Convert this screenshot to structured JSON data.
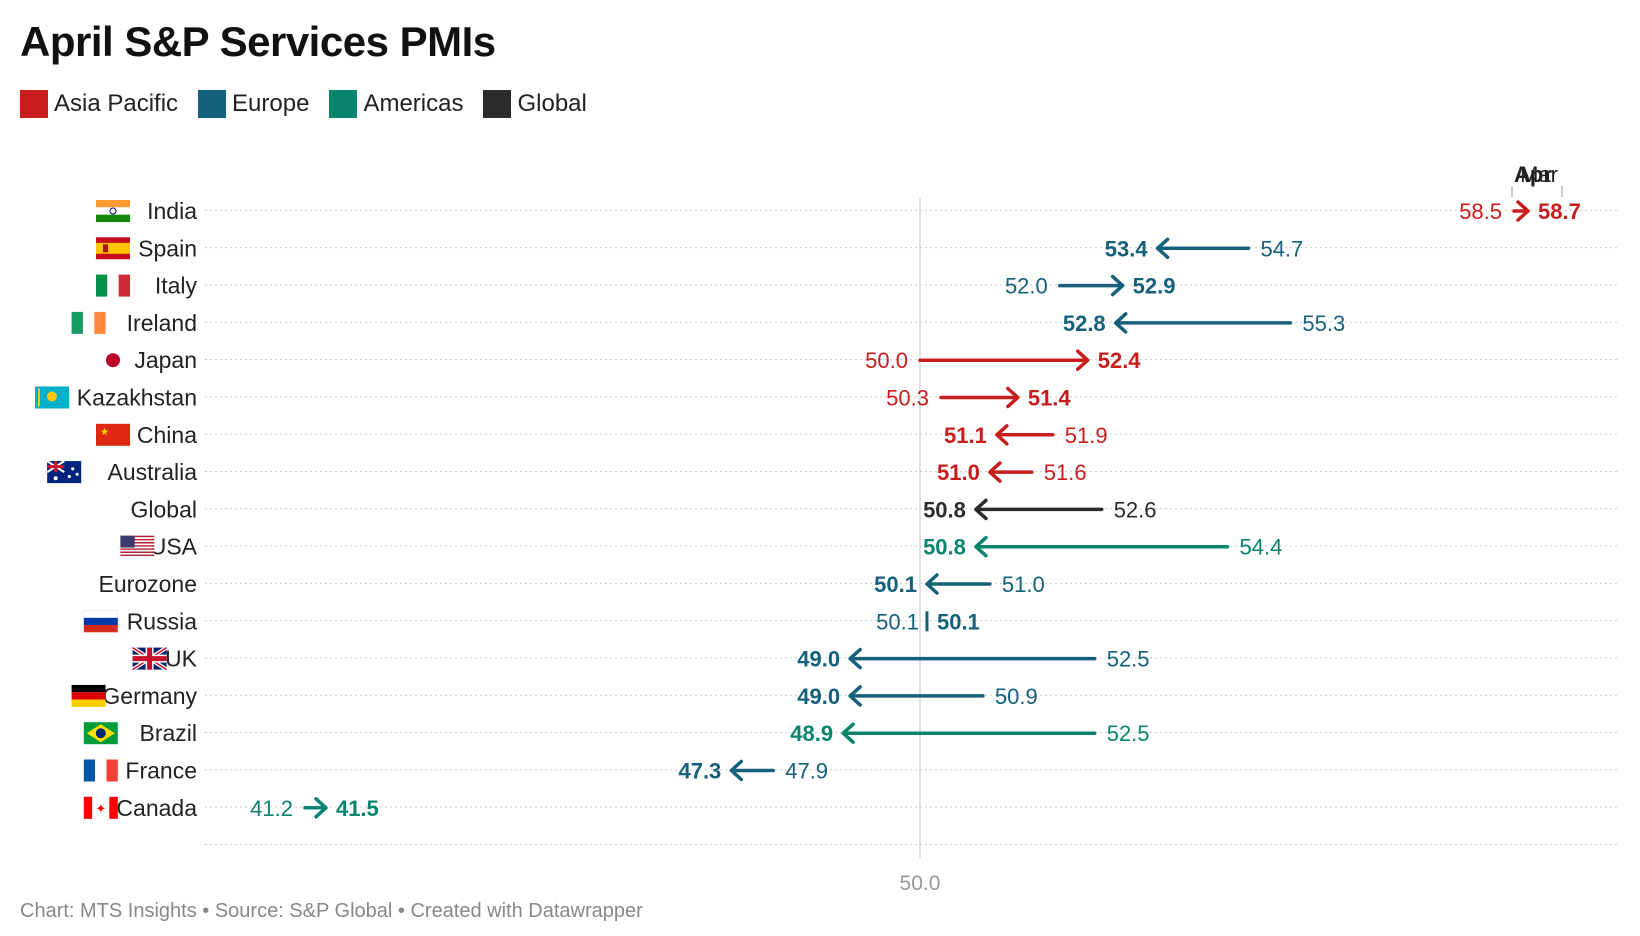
{
  "chart_data": {
    "type": "arrow-dumbbell",
    "title": "April S&P Services PMIs",
    "legend": [
      {
        "name": "Asia Pacific",
        "color": "#c71e1d"
      },
      {
        "name": "Europe",
        "color": "#15607a"
      },
      {
        "name": "Americas",
        "color": "#09856e"
      },
      {
        "name": "Global",
        "color": "#2b2b2b"
      }
    ],
    "key": {
      "from_label": "Mar",
      "to_label": "Apr"
    },
    "reference_value": 50.0,
    "reference_label": "50.0",
    "xlim": [
      41.2,
      58.7
    ],
    "rows": [
      {
        "name": "India",
        "flag": "india-flag",
        "region": "Asia Pacific",
        "mar": 58.5,
        "apr": 58.7,
        "mar_label": "58.5",
        "apr_label": "58.7"
      },
      {
        "name": "Spain",
        "flag": "spain-flag",
        "region": "Europe",
        "mar": 54.7,
        "apr": 53.4,
        "mar_label": "54.7",
        "apr_label": "53.4"
      },
      {
        "name": "Italy",
        "flag": "italy-flag",
        "region": "Europe",
        "mar": 52.0,
        "apr": 52.9,
        "mar_label": "52.0",
        "apr_label": "52.9"
      },
      {
        "name": "Ireland",
        "flag": "ireland-flag",
        "region": "Europe",
        "mar": 55.3,
        "apr": 52.8,
        "mar_label": "55.3",
        "apr_label": "52.8"
      },
      {
        "name": "Japan",
        "flag": "japan-flag",
        "region": "Asia Pacific",
        "mar": 50.0,
        "apr": 52.4,
        "mar_label": "50.0",
        "apr_label": "52.4"
      },
      {
        "name": "Kazakhstan",
        "flag": "kazakhstan-flag",
        "region": "Asia Pacific",
        "mar": 50.3,
        "apr": 51.4,
        "mar_label": "50.3",
        "apr_label": "51.4"
      },
      {
        "name": "China",
        "flag": "china-flag",
        "region": "Asia Pacific",
        "mar": 51.9,
        "apr": 51.1,
        "mar_label": "51.9",
        "apr_label": "51.1"
      },
      {
        "name": "Australia",
        "flag": "australia-flag",
        "region": "Asia Pacific",
        "mar": 51.6,
        "apr": 51.0,
        "mar_label": "51.6",
        "apr_label": "51.0"
      },
      {
        "name": "Global",
        "flag": "",
        "region": "Global",
        "mar": 52.6,
        "apr": 50.8,
        "mar_label": "52.6",
        "apr_label": "50.8"
      },
      {
        "name": "USA",
        "flag": "usa-flag",
        "region": "Americas",
        "mar": 54.4,
        "apr": 50.8,
        "mar_label": "54.4",
        "apr_label": "50.8"
      },
      {
        "name": "Eurozone",
        "flag": "",
        "region": "Europe",
        "mar": 51.0,
        "apr": 50.1,
        "mar_label": "51.0",
        "apr_label": "50.1"
      },
      {
        "name": "Russia",
        "flag": "russia-flag",
        "region": "Europe",
        "mar": 50.1,
        "apr": 50.1,
        "mar_label": "50.1",
        "apr_label": "50.1"
      },
      {
        "name": "UK",
        "flag": "uk-flag",
        "region": "Europe",
        "mar": 52.5,
        "apr": 49.0,
        "mar_label": "52.5",
        "apr_label": "49.0"
      },
      {
        "name": "Germany",
        "flag": "germany-flag",
        "region": "Europe",
        "mar": 50.9,
        "apr": 49.0,
        "mar_label": "50.9",
        "apr_label": "49.0"
      },
      {
        "name": "Brazil",
        "flag": "brazil-flag",
        "region": "Americas",
        "mar": 52.5,
        "apr": 48.9,
        "mar_label": "52.5",
        "apr_label": "48.9"
      },
      {
        "name": "France",
        "flag": "france-flag",
        "region": "Europe",
        "mar": 47.9,
        "apr": 47.3,
        "mar_label": "47.9",
        "apr_label": "47.3"
      },
      {
        "name": "Canada",
        "flag": "canada-flag",
        "region": "Americas",
        "mar": 41.2,
        "apr": 41.5,
        "mar_label": "41.2",
        "apr_label": "41.5"
      }
    ]
  },
  "footer": "Chart: MTS Insights • Source: S&P Global • Created with Datawrapper"
}
